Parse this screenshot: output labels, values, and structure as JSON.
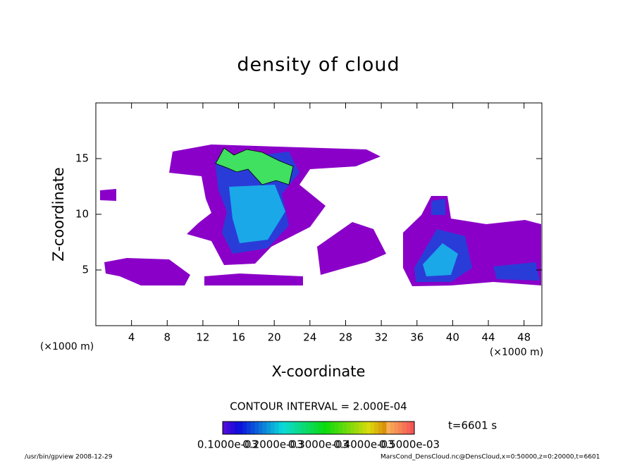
{
  "chart_data": {
    "type": "contour",
    "title": "density of cloud",
    "x_label": "X-coordinate",
    "y_label": "Z-coordinate",
    "x_unit": "(×1000 m)",
    "y_unit": "(×1000 m)",
    "xlim": [
      0,
      50
    ],
    "ylim": [
      0,
      20
    ],
    "xticks": [
      4,
      8,
      12,
      16,
      20,
      24,
      28,
      32,
      36,
      40,
      44,
      48
    ],
    "yticks": [
      5,
      10,
      15
    ],
    "contour_interval": "CONTOUR INTERVAL = 2.000E-04",
    "time_label": "t=6601 s",
    "colorbar_ticks": [
      {
        "value": 0.0001,
        "label": "0.1000e-03"
      },
      {
        "value": 0.0002,
        "label": "0.2000e-03"
      },
      {
        "value": 0.0003,
        "label": "0.3000e-03"
      },
      {
        "value": 0.0004,
        "label": "0.4000e-03"
      },
      {
        "value": 0.0005,
        "label": "0.5000e-03"
      }
    ],
    "footer_left": "/usr/bin/gpview  2008-12-29",
    "footer_right": "MarsCond_DensCloud.nc@DensCloud,x=0:50000,z=0:20000,t=6601"
  }
}
